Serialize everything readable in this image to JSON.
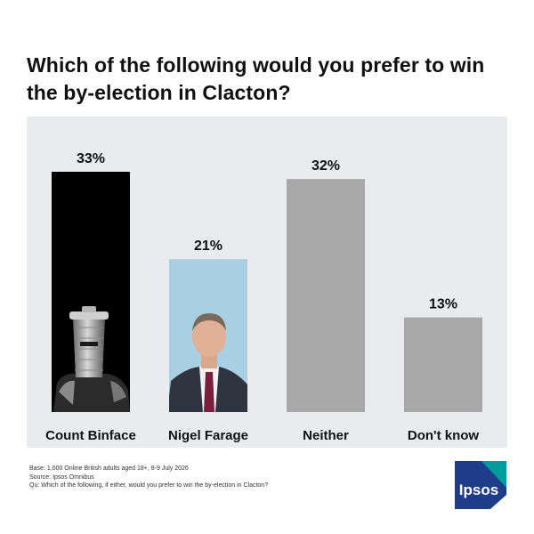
{
  "title": "Which of the following would you prefer to win the by-election in Clacton?",
  "chart_data": {
    "type": "bar",
    "title": "Which of the following would you prefer to win the by-election in Clacton?",
    "categories": [
      "Count Binface",
      "Nigel Farage",
      "Neither",
      "Don't know"
    ],
    "values": [
      33,
      21,
      32,
      13
    ],
    "value_labels": [
      "33%",
      "21%",
      "32%",
      "13%"
    ],
    "unit": "%",
    "ylim": [
      0,
      36
    ],
    "bar_fills": [
      "photo: Count Binface",
      "photo: Nigel Farage",
      "#a8a8a8",
      "#a8a8a8"
    ],
    "plot_background": "#e9ebee",
    "grid": false,
    "legend": "none"
  },
  "footnotes": {
    "base": "Base: 1,000 Online British adults aged 18+, 8-9 July 2026",
    "source": "Source: Ipsos Omnibus",
    "question": "Qu: Which of the following, if either, would you prefer to win the by-election in Clacton?"
  },
  "logo": {
    "text": "Ipsos",
    "colors": [
      "#009d9c",
      "#1f3c88"
    ]
  }
}
